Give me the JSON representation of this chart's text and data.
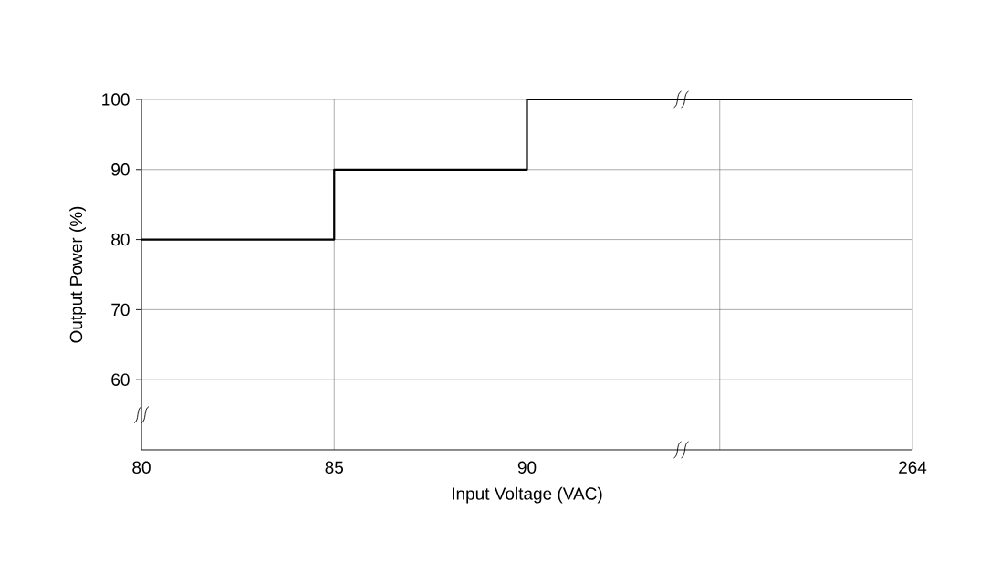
{
  "chart_data": {
    "type": "step",
    "categories": [
      "80",
      "85",
      "90",
      null,
      "264"
    ],
    "values": [
      80,
      90,
      100,
      100,
      100
    ],
    "color": "#000000",
    "xlabel": "Input Voltage (VAC)",
    "ylabel": "Output Power (%)",
    "ylim": [
      50,
      100
    ],
    "yticks": [
      60,
      70,
      80,
      90,
      100
    ],
    "grid": true
  }
}
